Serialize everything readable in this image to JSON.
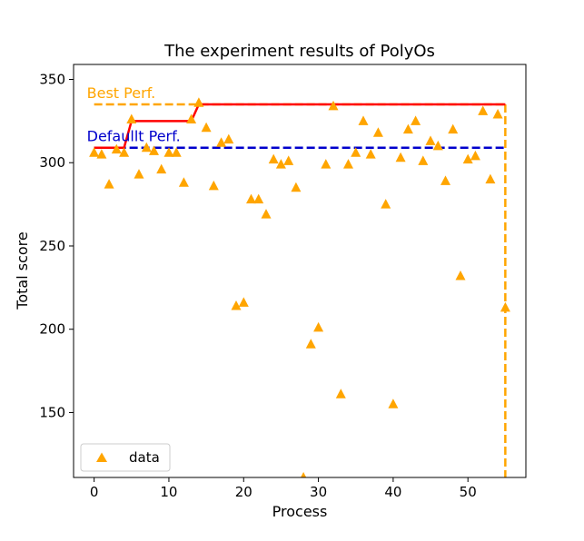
{
  "chart_data": {
    "type": "scatter",
    "title": "The experiment results of PolyOs",
    "xlabel": "Process",
    "ylabel": "Total score",
    "xlim": [
      -2.75,
      57.75
    ],
    "ylim": [
      111,
      359
    ],
    "xticks": [
      0,
      10,
      20,
      30,
      40,
      50
    ],
    "yticks": [
      150,
      200,
      250,
      300,
      350
    ],
    "grid": false,
    "legend": {
      "placement": "lower-left",
      "entries": [
        "data"
      ]
    },
    "series": [
      {
        "name": "data",
        "marker": "triangle",
        "color": "#ffa500",
        "x": [
          0,
          1,
          2,
          3,
          4,
          5,
          6,
          7,
          8,
          9,
          10,
          11,
          12,
          13,
          14,
          15,
          16,
          17,
          18,
          19,
          20,
          21,
          22,
          23,
          24,
          25,
          26,
          27,
          28,
          29,
          30,
          31,
          32,
          33,
          34,
          35,
          36,
          37,
          38,
          39,
          40,
          41,
          42,
          43,
          44,
          45,
          46,
          47,
          48,
          49,
          50,
          51,
          52,
          53,
          54,
          55
        ],
        "y": [
          306,
          305,
          287,
          308,
          306,
          326,
          293,
          309,
          307,
          296,
          306,
          306,
          288,
          326,
          336,
          321,
          286,
          312,
          314,
          214,
          216,
          278,
          278,
          269,
          302,
          299,
          301,
          285,
          111,
          191,
          201,
          299,
          334,
          161,
          299,
          306,
          325,
          305,
          318,
          275,
          155,
          303,
          320,
          325,
          301,
          313,
          310,
          289,
          320,
          232,
          302,
          304,
          331,
          290,
          329,
          213
        ]
      }
    ],
    "best_curve": {
      "color": "#ff0000",
      "x": [
        0,
        1,
        2,
        3,
        4,
        5,
        6,
        7,
        8,
        9,
        10,
        11,
        12,
        13,
        14,
        15,
        16,
        17,
        18,
        19,
        20,
        21,
        22,
        23,
        24,
        25,
        26,
        27,
        28,
        29,
        30,
        31,
        32,
        33,
        34,
        35,
        36,
        37,
        38,
        39,
        40,
        41,
        42,
        43,
        44,
        45,
        46,
        47,
        48,
        49,
        50,
        51,
        52,
        53,
        54,
        55
      ],
      "y": [
        309,
        309,
        309,
        309,
        309,
        325,
        325,
        325,
        325,
        325,
        325,
        325,
        325,
        325,
        335,
        335,
        335,
        335,
        335,
        335,
        335,
        335,
        335,
        335,
        335,
        335,
        335,
        335,
        335,
        335,
        335,
        335,
        335,
        335,
        335,
        335,
        335,
        335,
        335,
        335,
        335,
        335,
        335,
        335,
        335,
        335,
        335,
        335,
        335,
        335,
        335,
        335,
        335,
        335,
        335,
        335
      ]
    },
    "reference_lines": [
      {
        "label": "Best Perf.",
        "value": 335,
        "color": "#ffa500",
        "style": "dashed",
        "x_range": [
          0,
          55
        ],
        "drop_at_x": 55
      },
      {
        "label": "Defaullt Perf.",
        "value": 309,
        "color": "#0000cc",
        "style": "dashed",
        "x_range": [
          0,
          55
        ]
      }
    ]
  }
}
